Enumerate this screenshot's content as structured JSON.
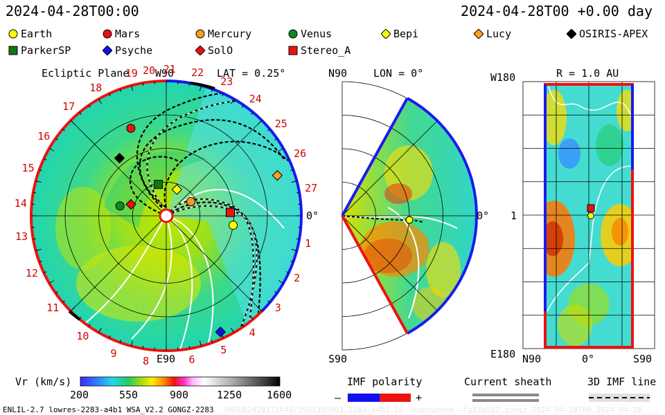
{
  "header": {
    "timestamp_left": "2024-04-28T00:00",
    "timestamp_right": "2024-04-28T00 +0.00 day"
  },
  "legend": [
    {
      "name": "Earth",
      "shape": "circle",
      "color": "#ffff00"
    },
    {
      "name": "Mars",
      "shape": "circle",
      "color": "#ee1111"
    },
    {
      "name": "Mercury",
      "shape": "circle",
      "color": "#ff9922"
    },
    {
      "name": "Venus",
      "shape": "circle",
      "color": "#118822"
    },
    {
      "name": "Bepi",
      "shape": "diamond",
      "color": "#ffff00"
    },
    {
      "name": "Lucy",
      "shape": "diamond",
      "color": "#ffa020"
    },
    {
      "name": "OSIRIS-APEX",
      "shape": "diamond",
      "color": "#000000"
    },
    {
      "name": "ParkerSP",
      "shape": "square",
      "color": "#117711"
    },
    {
      "name": "Psyche",
      "shape": "diamond",
      "color": "#1111ee"
    },
    {
      "name": "SolO",
      "shape": "diamond",
      "color": "#ee1111"
    },
    {
      "name": "Stereo_A",
      "shape": "square",
      "color": "#ee1111"
    }
  ],
  "ecliptic": {
    "title": "Ecliptic Plane",
    "lat_label": "LAT = 0.25°",
    "top_label": "W90",
    "bottom_label": "E90",
    "right_label": "0°",
    "carrington_labels": [
      "19",
      "20",
      "21",
      "22",
      "23",
      "24",
      "25",
      "26",
      "27",
      "1",
      "2",
      "3",
      "4",
      "5",
      "6",
      "8",
      "9",
      "10",
      "11",
      "12",
      "13",
      "14",
      "15",
      "16",
      "17",
      "18"
    ]
  },
  "meridional": {
    "top_label": "N90",
    "bottom_label": "S90",
    "lon_label": "LON = 0°",
    "right_label": "0°"
  },
  "sphere": {
    "top_left_label": "W180",
    "title": "R = 1.0 AU",
    "left_mid_label": "1",
    "bottom_left_label": "E180",
    "x_labels": [
      "N90",
      "0°",
      "S90"
    ]
  },
  "colorbar": {
    "title": "Vr (km/s)",
    "ticks": [
      "200",
      "550",
      "900",
      "1250",
      "1600"
    ],
    "range": [
      200,
      1600
    ]
  },
  "imf_polarity": {
    "title": "IMF polarity",
    "minus": "–",
    "plus": "+",
    "neg_color": "#1111ee",
    "pos_color": "#ee1111"
  },
  "current_sheath": {
    "title": "Current sheath"
  },
  "imf_line": {
    "title": "3D IMF line"
  },
  "footer": {
    "left": "ENLIL-2.7 lowres-2283-a4b1 WSA_V2.2 GONGZ-2283",
    "right": "UNSUB2429171640/2951305901.2283-a4b1.16--noptunned--fg83a5d2.gongz-2024-04-28T00  2024-04-28"
  },
  "chart_data": [
    {
      "type": "heatmap",
      "title": "Ecliptic Plane",
      "subtitle": "LAT = 0.25°",
      "bodies": [
        {
          "name": "Earth",
          "r_au": 1.0,
          "lon_deg": -8
        },
        {
          "name": "Stereo_A",
          "r_au": 0.95,
          "lon_deg": 3
        },
        {
          "name": "Mercury",
          "r_au": 0.42,
          "lon_deg": 30
        },
        {
          "name": "Bepi",
          "r_au": 0.42,
          "lon_deg": 68
        },
        {
          "name": "ParkerSP",
          "r_au": 0.48,
          "lon_deg": 104
        },
        {
          "name": "Venus",
          "r_au": 0.7,
          "lon_deg": 168
        },
        {
          "name": "SolO",
          "r_au": 0.55,
          "lon_deg": 162
        },
        {
          "name": "Mars",
          "r_au": 1.4,
          "lon_deg": 112
        },
        {
          "name": "OSIRIS-APEX",
          "r_au": 1.1,
          "lon_deg": 129
        },
        {
          "name": "Lucy",
          "r_au": 1.75,
          "lon_deg": 20
        },
        {
          "name": "Psyche",
          "r_au": 1.9,
          "lon_deg": -65
        }
      ]
    },
    {
      "type": "heatmap",
      "title": "LON = 0°",
      "bodies": [
        {
          "name": "Earth",
          "r_au": 1.0,
          "lat_deg": 0
        }
      ]
    },
    {
      "type": "heatmap",
      "title": "R = 1.0 AU",
      "bodies": [
        {
          "name": "Earth"
        },
        {
          "name": "Stereo_A"
        }
      ]
    }
  ]
}
